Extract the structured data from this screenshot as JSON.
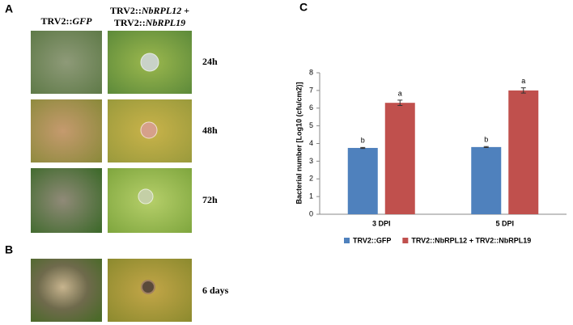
{
  "panel_a": {
    "label": "A",
    "columns": [
      {
        "runs": [
          {
            "text": "TRV2::"
          },
          {
            "text": "GFP",
            "italic": true
          }
        ]
      },
      {
        "lines": [
          {
            "runs": [
              {
                "text": "TRV2::"
              },
              {
                "text": "NbRPL12",
                "italic": true
              },
              {
                "text": " +"
              }
            ]
          },
          {
            "runs": [
              {
                "text": "TRV2::"
              },
              {
                "text": "NbRPL19",
                "italic": true
              }
            ]
          }
        ]
      }
    ],
    "rows": [
      "24h",
      "48h",
      "72h"
    ]
  },
  "panel_b": {
    "label": "B",
    "rows": [
      "6 days"
    ]
  },
  "panel_c": {
    "label": "C"
  },
  "chart_data": {
    "type": "bar",
    "ylabel": "Bacterial number [Log10 (cfu/cm2)]",
    "categories": [
      "3 DPI",
      "5 DPI"
    ],
    "series": [
      {
        "name": "TRV2::GFP",
        "color": "#4f81bd",
        "values": [
          3.75,
          3.8
        ],
        "errors": [
          0.03,
          0.03
        ],
        "letters": [
          "b",
          "b"
        ]
      },
      {
        "name": "TRV2::NbRPL12 + TRV2::NbRPL19",
        "color": "#c0504d",
        "values": [
          6.3,
          7.0
        ],
        "errors": [
          0.15,
          0.15
        ],
        "letters": [
          "a",
          "a"
        ]
      }
    ],
    "ylim": [
      0,
      8
    ],
    "yticks": [
      0,
      1,
      2,
      3,
      4,
      5,
      6,
      7,
      8
    ],
    "legend": "bottom"
  }
}
